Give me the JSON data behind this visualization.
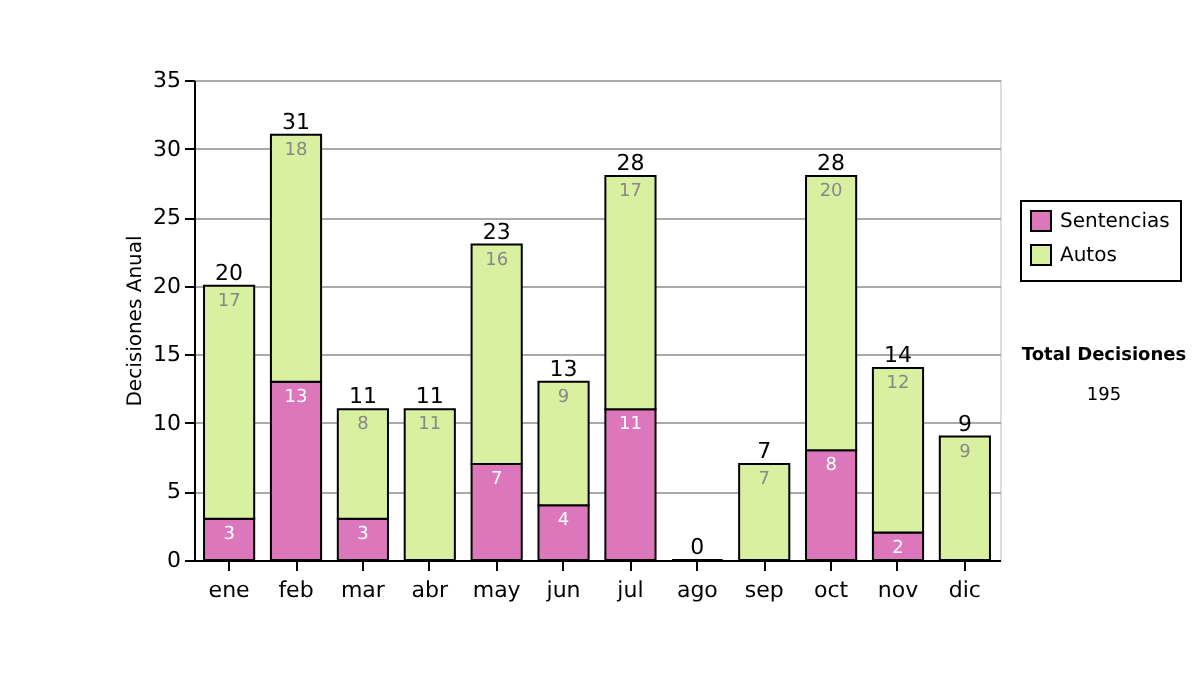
{
  "chart_data": {
    "type": "bar",
    "stacked": true,
    "ylabel": "Decisiones Anual",
    "categories": [
      "ene",
      "feb",
      "mar",
      "abr",
      "may",
      "jun",
      "jul",
      "ago",
      "sep",
      "oct",
      "nov",
      "dic"
    ],
    "series": [
      {
        "name": "Sentencias",
        "color": "#dd77bb",
        "values": [
          3,
          13,
          3,
          0,
          7,
          4,
          11,
          0,
          0,
          8,
          2,
          0
        ],
        "value_labels": [
          "3",
          "13",
          "3",
          null,
          "7",
          "4",
          "11",
          null,
          null,
          "8",
          "2",
          null
        ]
      },
      {
        "name": "Autos",
        "color": "#d8f0a0",
        "values": [
          17,
          18,
          8,
          11,
          16,
          9,
          17,
          0,
          7,
          20,
          12,
          9
        ],
        "value_labels": [
          "17",
          "18",
          "8",
          "11",
          "16",
          "9",
          "17",
          null,
          "7",
          "20",
          "12",
          "9"
        ]
      }
    ],
    "totals": [
      "20",
      "31",
      "11",
      "11",
      "23",
      "13",
      "28",
      "0",
      "7",
      "28",
      "14",
      "9"
    ],
    "ylim": [
      0,
      35
    ],
    "yticks": [
      0,
      5,
      10,
      15,
      20,
      25,
      30,
      35
    ],
    "grid": "y",
    "legend": "right",
    "annotations": [
      "Total Decisiones",
      "195"
    ]
  }
}
